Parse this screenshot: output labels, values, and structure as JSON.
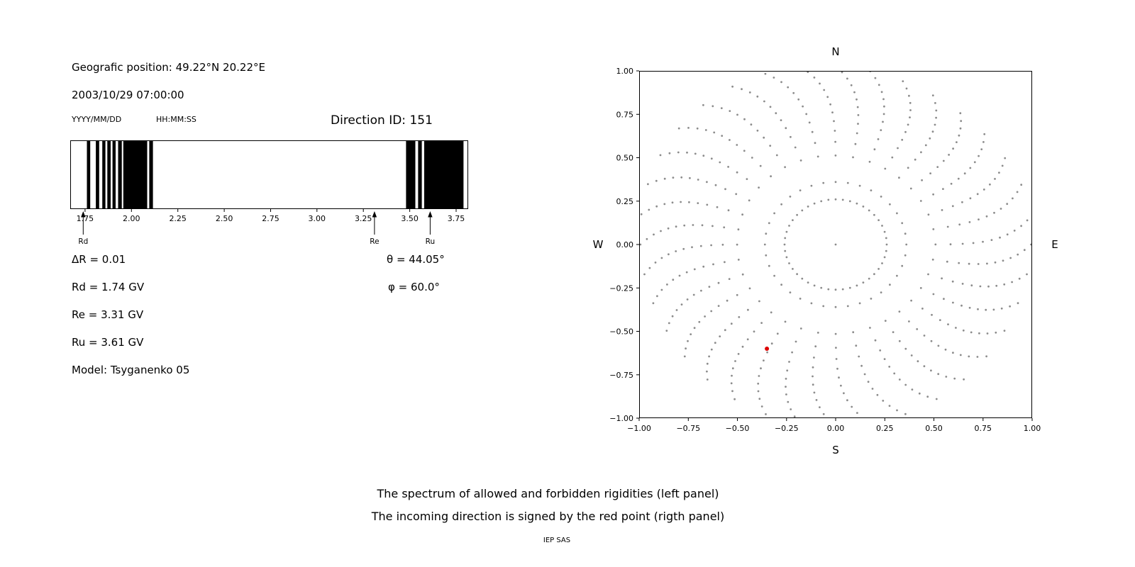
{
  "left_panel": {
    "position_line": "Geografic position: 49.22°N 20.22°E",
    "datetime_line": "2003/10/29 07:00:00",
    "date_format_label": "YYYY/MM/DD",
    "time_format_label": "HH:MM:SS",
    "direction_id_label": "Direction ID: 151",
    "delta_r_label": "ΔR = 0.01",
    "theta_label": "θ = 44.05°",
    "rd_label": "Rd = 1.74 GV",
    "phi_label": "φ = 60.0°",
    "re_label": "Re = 3.31 GV",
    "ru_label": "Ru = 3.61 GV",
    "model_label": "Model: Tsyganenko 05"
  },
  "captions": {
    "line1": "The spectrum of allowed and forbidden rigidities (left panel)",
    "line2": "The incoming direction is signed by the red point (rigth panel)",
    "credit": "IEP SAS"
  },
  "chart_data": [
    {
      "type": "bar",
      "panel": "left",
      "title": "Rigidity spectrum of allowed and forbidden bands",
      "xlim": [
        1.67,
        3.815
      ],
      "ticks": [
        1.75,
        2.0,
        2.25,
        2.5,
        2.75,
        3.0,
        3.25,
        3.5,
        3.75
      ],
      "band_color": "#000000",
      "forbidden_bands": [
        [
          1.76,
          1.778
        ],
        [
          1.808,
          1.826
        ],
        [
          1.843,
          1.86
        ],
        [
          1.87,
          1.888
        ],
        [
          1.898,
          1.915
        ],
        [
          1.928,
          1.948
        ],
        [
          1.956,
          2.085
        ],
        [
          2.096,
          2.116
        ],
        [
          3.48,
          3.53
        ],
        [
          3.545,
          3.565
        ],
        [
          3.578,
          3.79
        ]
      ],
      "annotations": [
        {
          "label": "Rd",
          "x": 1.74
        },
        {
          "label": "Re",
          "x": 3.31
        },
        {
          "label": "Ru",
          "x": 3.61
        }
      ],
      "values": {
        "delta_R": 0.01,
        "Rd_GV": 1.74,
        "Re_GV": 3.31,
        "Ru_GV": 3.61,
        "theta_deg": 44.05,
        "phi_deg": 60.0,
        "model": "Tsyganenko 05",
        "direction_id": 151
      }
    },
    {
      "type": "scatter",
      "panel": "right",
      "title": "Incoming direction map",
      "xlim": [
        -1,
        1
      ],
      "ylim": [
        -1,
        1
      ],
      "xticks": [
        -1,
        -0.75,
        -0.5,
        -0.25,
        0,
        0.25,
        0.5,
        0.75,
        1
      ],
      "yticks": [
        -1,
        -0.75,
        -0.5,
        -0.25,
        0,
        0.25,
        0.5,
        0.75,
        1
      ],
      "compass": {
        "top": "N",
        "bottom": "S",
        "left": "W",
        "right": "E"
      },
      "gray_pattern": {
        "spokes": 36,
        "r_inner": 0.36,
        "r_outer": 1.05,
        "points_per_spoke": 13,
        "radial_exponent": 0.6,
        "curl_deg": 10,
        "outer_variation": 0.06,
        "ring_radius": 0.26,
        "ring_points": 44,
        "center_dot": true,
        "color": "#8c8c8c",
        "dot_radius": 1.4
      },
      "red_point": {
        "x": -0.35,
        "y": -0.6,
        "color": "#dd0000",
        "radius": 3
      }
    }
  ]
}
